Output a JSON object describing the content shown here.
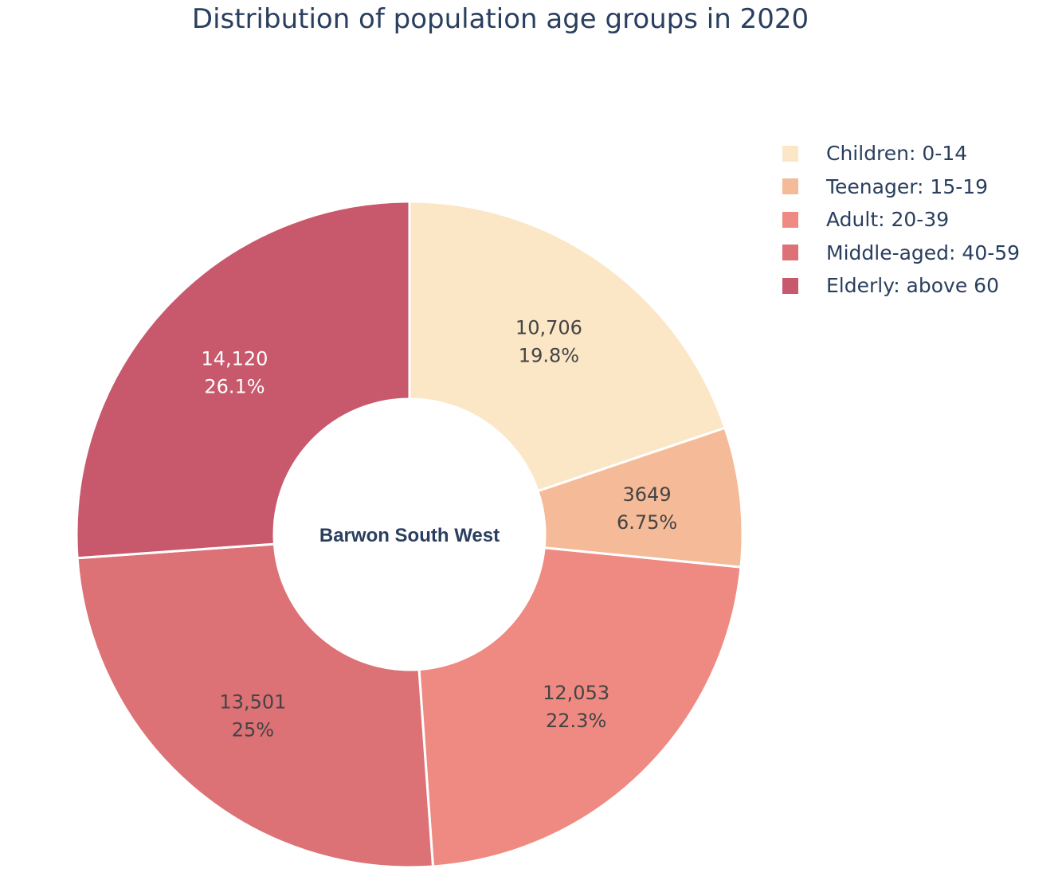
{
  "chart_data": {
    "type": "pie",
    "hole": true,
    "title": "Distribution of population age groups in 2020",
    "center_label": "Barwon South West",
    "legend_position": "top-right",
    "direction": "clockwise",
    "slices": [
      {
        "label": "Children: 0-14",
        "value": 10706,
        "value_text": "10,706",
        "percent_text": "19.8%",
        "color": "#fbe6c5",
        "text_color": "#444444"
      },
      {
        "label": "Teenager: 15-19",
        "value": 3649,
        "value_text": "3649",
        "percent_text": "6.75%",
        "color": "#f5ba98",
        "text_color": "#444444"
      },
      {
        "label": "Adult: 20-39",
        "value": 12053,
        "value_text": "12,053",
        "percent_text": "22.3%",
        "color": "#ee8a82",
        "text_color": "#444444"
      },
      {
        "label": "Middle-aged: 40-59",
        "value": 13501,
        "value_text": "13,501",
        "percent_text": "25%",
        "color": "#dc7176",
        "text_color": "#444444"
      },
      {
        "label": "Elderly: above 60",
        "value": 14120,
        "value_text": "14,120",
        "percent_text": "26.1%",
        "color": "#c8586c",
        "text_color": "#ffffff"
      }
    ]
  }
}
